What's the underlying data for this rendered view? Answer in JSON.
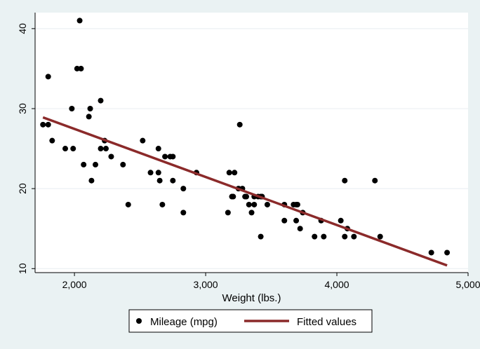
{
  "chart_data": {
    "type": "scatter",
    "title": "",
    "xlabel": "Weight (lbs.)",
    "ylabel": "",
    "xlim": [
      1700,
      5000
    ],
    "ylim": [
      9.5,
      42
    ],
    "x_ticks": [
      2000,
      3000,
      4000,
      5000
    ],
    "x_tick_labels": [
      "2,000",
      "3,000",
      "4,000",
      "5,000"
    ],
    "y_ticks": [
      10,
      20,
      30,
      40
    ],
    "y_tick_labels": [
      "10",
      "20",
      "30",
      "40"
    ],
    "grid": "horizontal",
    "legend_position": "bottom",
    "colors": {
      "points": "#000000",
      "fit": "#8b2a2a",
      "plot_bg": "#ffffff",
      "outer_bg": "#eaf2f3",
      "grid": "#e8eef0"
    },
    "series": [
      {
        "name": "Mileage (mpg)",
        "kind": "scatter",
        "points": [
          [
            1760,
            28
          ],
          [
            1800,
            34
          ],
          [
            1800,
            28
          ],
          [
            1830,
            26
          ],
          [
            1930,
            25
          ],
          [
            1980,
            30
          ],
          [
            1990,
            25
          ],
          [
            2020,
            35
          ],
          [
            2040,
            41
          ],
          [
            2050,
            35
          ],
          [
            2070,
            23
          ],
          [
            2110,
            29
          ],
          [
            2120,
            30
          ],
          [
            2130,
            21
          ],
          [
            2160,
            23
          ],
          [
            2200,
            31
          ],
          [
            2200,
            25
          ],
          [
            2230,
            26
          ],
          [
            2240,
            25
          ],
          [
            2280,
            24
          ],
          [
            2370,
            23
          ],
          [
            2410,
            18
          ],
          [
            2520,
            26
          ],
          [
            2580,
            22
          ],
          [
            2640,
            25
          ],
          [
            2640,
            22
          ],
          [
            2650,
            21
          ],
          [
            2670,
            18
          ],
          [
            2690,
            24
          ],
          [
            2730,
            24
          ],
          [
            2750,
            24
          ],
          [
            2750,
            21
          ],
          [
            2830,
            20
          ],
          [
            2830,
            17
          ],
          [
            2930,
            22
          ],
          [
            3170,
            17
          ],
          [
            3180,
            22
          ],
          [
            3200,
            19
          ],
          [
            3210,
            19
          ],
          [
            3220,
            22
          ],
          [
            3250,
            20
          ],
          [
            3260,
            28
          ],
          [
            3280,
            20
          ],
          [
            3300,
            19
          ],
          [
            3310,
            19
          ],
          [
            3330,
            18
          ],
          [
            3350,
            17
          ],
          [
            3370,
            18
          ],
          [
            3370,
            19
          ],
          [
            3400,
            19
          ],
          [
            3420,
            19
          ],
          [
            3420,
            14
          ],
          [
            3430,
            19
          ],
          [
            3470,
            18
          ],
          [
            3600,
            16
          ],
          [
            3600,
            18
          ],
          [
            3670,
            18
          ],
          [
            3690,
            16
          ],
          [
            3690,
            18
          ],
          [
            3700,
            18
          ],
          [
            3720,
            15
          ],
          [
            3740,
            17
          ],
          [
            3830,
            14
          ],
          [
            3880,
            16
          ],
          [
            3900,
            14
          ],
          [
            4030,
            16
          ],
          [
            4060,
            14
          ],
          [
            4060,
            21
          ],
          [
            4080,
            15
          ],
          [
            4130,
            14
          ],
          [
            4290,
            21
          ],
          [
            4330,
            14
          ],
          [
            4720,
            12
          ],
          [
            4840,
            12
          ]
        ]
      },
      {
        "name": "Fitted values",
        "kind": "line",
        "points": [
          [
            1760,
            28.9
          ],
          [
            4840,
            10.4
          ]
        ]
      }
    ]
  }
}
